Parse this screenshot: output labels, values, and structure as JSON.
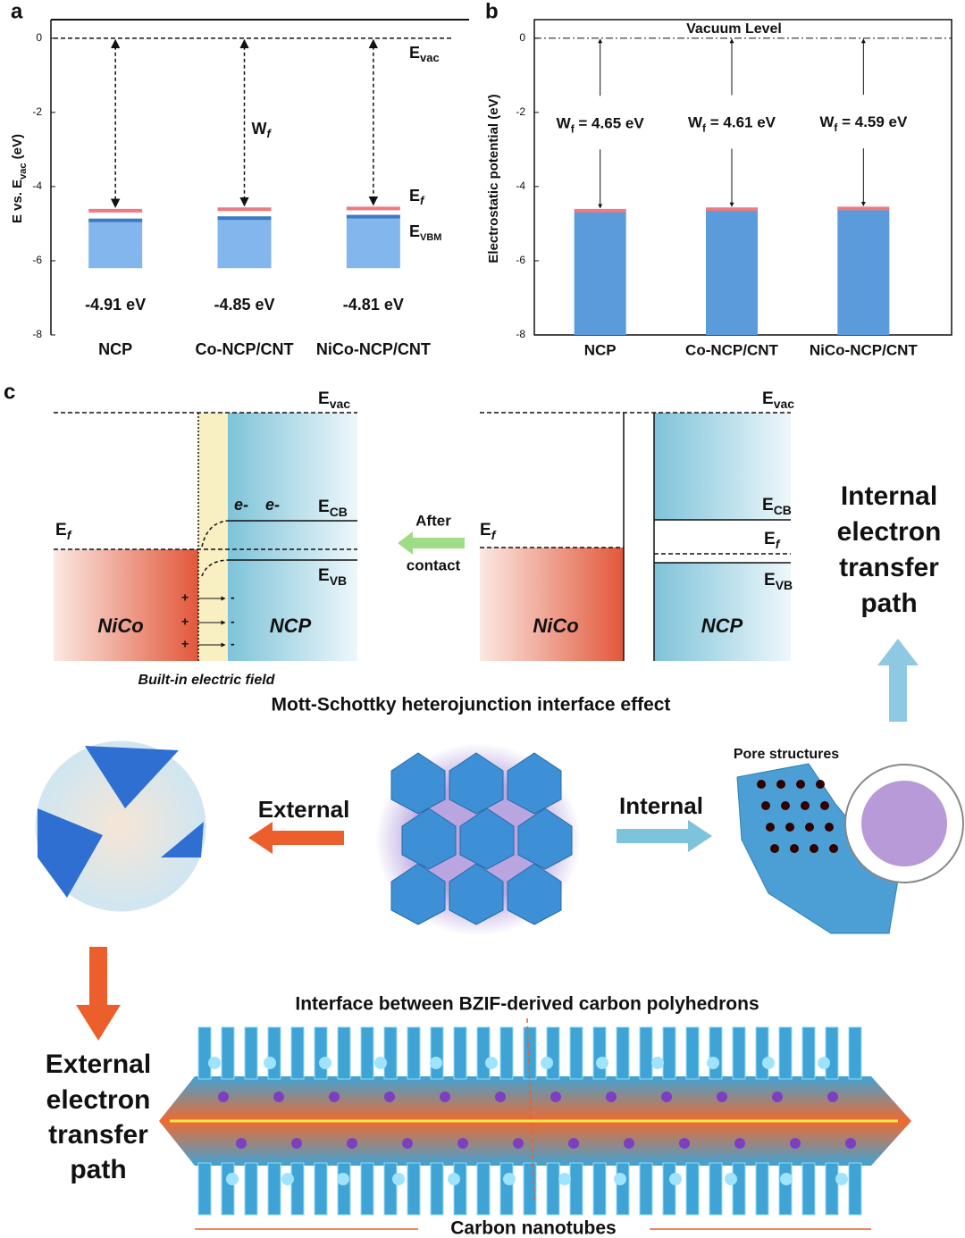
{
  "chart_data": [
    {
      "type": "energy_level",
      "panel_label": "a",
      "y_label": {
        "base": "E vs. E",
        "sub": "vac",
        "rest": " (eV)"
      },
      "ylim": [
        -8,
        0.5
      ],
      "yticks": [
        0,
        -2,
        -4,
        -6,
        -8
      ],
      "vacuum_level": 0,
      "categories": [
        "NCP",
        "Co-NCP/CNT",
        "NiCo-NCP/CNT"
      ],
      "ef_values": [
        -4.65,
        -4.61,
        -4.59
      ],
      "ef_color": "#ee7a80",
      "vbm_values": [
        -4.91,
        -4.85,
        -4.81
      ],
      "vbm_color": "#3d7cc4",
      "value_labels": [
        "-4.91 eV",
        "-4.85 eV",
        "-4.81 eV"
      ],
      "band_bottom": [
        -6.2,
        -6.2,
        -6.2
      ],
      "band_color": "#82b6ec",
      "annotations": {
        "evac": {
          "base": "E",
          "sub": "vac"
        },
        "wf": {
          "base": "W",
          "sub": "f"
        },
        "ef": {
          "base": "E",
          "sub": "f"
        },
        "evbm": {
          "base": "E",
          "sub": "VBM"
        }
      }
    },
    {
      "type": "bar",
      "panel_label": "b",
      "title": "Vacuum Level",
      "y_label": "Electrostatic potential (eV)",
      "ylim": [
        -8,
        0.5
      ],
      "yticks": [
        0,
        -2,
        -4,
        -6,
        -8
      ],
      "vacuum_level": 0,
      "categories": [
        "NCP",
        "Co-NCP/CNT",
        "NiCo-NCP/CNT"
      ],
      "values": [
        -4.65,
        -4.61,
        -4.59
      ],
      "color": "#5b9bdc",
      "top_color": "#ee7a80",
      "value_labels": [
        {
          "base": "W",
          "sub": "f",
          "rest": " = 4.65 eV"
        },
        {
          "base": "W",
          "sub": "f",
          "rest": " = 4.61 eV"
        },
        {
          "base": "W",
          "sub": "f",
          "rest": " = 4.59 eV"
        }
      ]
    }
  ],
  "diagram": {
    "panel_label": "c",
    "left": {
      "evac": {
        "base": "E",
        "sub": "vac"
      },
      "ecb": {
        "base": "E",
        "sub": "CB"
      },
      "ef": {
        "base": "E",
        "sub": "f"
      },
      "evb": {
        "base": "E",
        "sub": "VB"
      },
      "electrons": [
        "e-",
        "e-"
      ],
      "plus": [
        "+",
        "+",
        "+"
      ],
      "minus": [
        "-",
        "-",
        "-"
      ],
      "metal": "NiCo",
      "semiconductor": "NCP",
      "field": "Built-in electric field"
    },
    "arrow_text": [
      "After",
      "contact"
    ],
    "right": {
      "evac": {
        "base": "E",
        "sub": "vac"
      },
      "ecb": {
        "base": "E",
        "sub": "CB"
      },
      "ef_metal": {
        "base": "E",
        "sub": "f"
      },
      "ef": {
        "base": "E",
        "sub": "f"
      },
      "evb": {
        "base": "E",
        "sub": "VB"
      },
      "metal": "NiCo",
      "semiconductor": "NCP"
    },
    "internal_path": [
      "Internal",
      "electron",
      "transfer",
      "path"
    ],
    "interface_effect": "Mott-Schottky heterojunction interface effect",
    "pore": "Pore structures",
    "external": "External",
    "internal": "Internal",
    "external_path": [
      "External",
      "electron",
      "transfer",
      "path"
    ],
    "interface": "Interface between BZIF-derived carbon polyhedrons",
    "nanotubes": "Carbon nanotubes"
  }
}
